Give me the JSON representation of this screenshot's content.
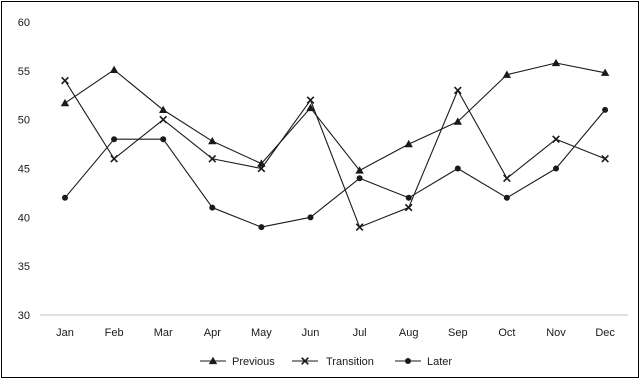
{
  "chart_data": {
    "type": "line",
    "title": "",
    "xlabel": "",
    "ylabel": "",
    "categories": [
      "Jan",
      "Feb",
      "Mar",
      "Apr",
      "May",
      "Jun",
      "Jul",
      "Aug",
      "Sep",
      "Oct",
      "Nov",
      "Dec"
    ],
    "ylim": [
      30,
      60
    ],
    "yticks": [
      30,
      35,
      40,
      45,
      50,
      55,
      60
    ],
    "grid": false,
    "legend_position": "bottom",
    "series": [
      {
        "name": "Previous",
        "marker": "triangle",
        "color": "#1a1a1a",
        "values": [
          51.7,
          55.1,
          51.0,
          47.8,
          45.5,
          51.2,
          44.8,
          47.5,
          49.8,
          54.6,
          55.8,
          54.8
        ]
      },
      {
        "name": "Transition",
        "marker": "x",
        "color": "#1a1a1a",
        "values": [
          54,
          46,
          50,
          46,
          45,
          52,
          39,
          41,
          53,
          44,
          48,
          46
        ]
      },
      {
        "name": "Later",
        "marker": "circle",
        "color": "#1a1a1a",
        "values": [
          42,
          48,
          48,
          41,
          39,
          40,
          44,
          42,
          45,
          42,
          45,
          51
        ]
      }
    ]
  }
}
